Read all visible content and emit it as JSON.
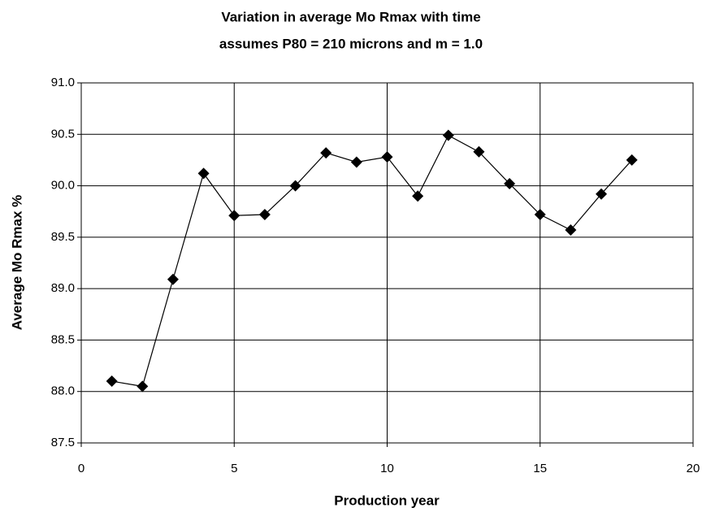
{
  "chart_data": {
    "type": "line",
    "title": "Variation in average Mo Rmax with time",
    "subtitle": "assumes P80 = 210 microns and m = 1.0",
    "x_label": "Production year",
    "y_label": "Average Mo Rmax %",
    "x": [
      1,
      2,
      3,
      4,
      5,
      6,
      7,
      8,
      9,
      10,
      11,
      12,
      13,
      14,
      15,
      16,
      17,
      18
    ],
    "series": [
      {
        "name": "Average Mo Rmax",
        "color": "#000000",
        "values": [
          88.1,
          88.05,
          89.09,
          90.12,
          89.71,
          89.72,
          90.0,
          90.32,
          90.23,
          90.28,
          89.9,
          90.49,
          90.33,
          90.02,
          89.72,
          89.57,
          89.92,
          90.25
        ]
      }
    ],
    "xlim": [
      0,
      20
    ],
    "xticks": [
      0,
      5,
      10,
      15,
      20
    ],
    "ylim": [
      87.5,
      91.0
    ],
    "yticks": [
      87.5,
      {
        "value": 88.0,
        "label": "88.0"
      },
      88.5,
      {
        "value": 89.0,
        "label": "89.0"
      },
      89.5,
      {
        "value": 90.0,
        "label": "90.0"
      },
      90.5,
      {
        "value": 91.0,
        "label": "91.0"
      }
    ],
    "grid": true
  }
}
